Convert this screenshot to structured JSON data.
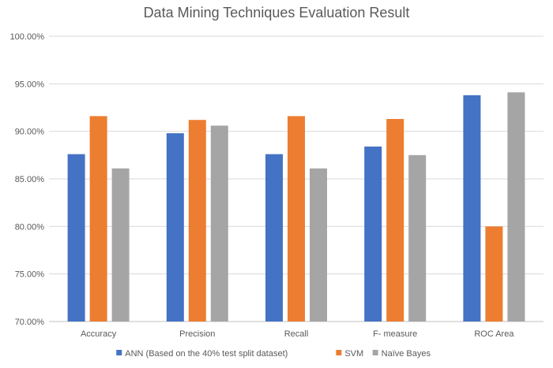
{
  "chart_data": {
    "type": "bar",
    "title": "Data Mining Techniques Evaluation Result",
    "xlabel": "",
    "ylabel": "",
    "categories": [
      "Accuracy",
      "Precision",
      "Recall",
      "F- measure",
      "ROC Area"
    ],
    "series": [
      {
        "name": "ANN (Based on the 40% test split dataset)",
        "color": "#4472c4",
        "values": [
          87.6,
          89.8,
          87.6,
          88.4,
          93.8
        ]
      },
      {
        "name": "SVM",
        "color": "#ed7d31",
        "values": [
          91.6,
          91.2,
          91.6,
          91.3,
          80.0
        ]
      },
      {
        "name": "Naïve Bayes",
        "color": "#a5a5a5",
        "values": [
          86.1,
          90.6,
          86.1,
          87.5,
          94.1
        ]
      }
    ],
    "ylim": [
      70,
      100
    ],
    "yticks": [
      "70.00%",
      "75.00%",
      "80.00%",
      "85.00%",
      "90.00%",
      "95.00%",
      "100.00%"
    ],
    "grid": true,
    "legend_position": "bottom"
  }
}
